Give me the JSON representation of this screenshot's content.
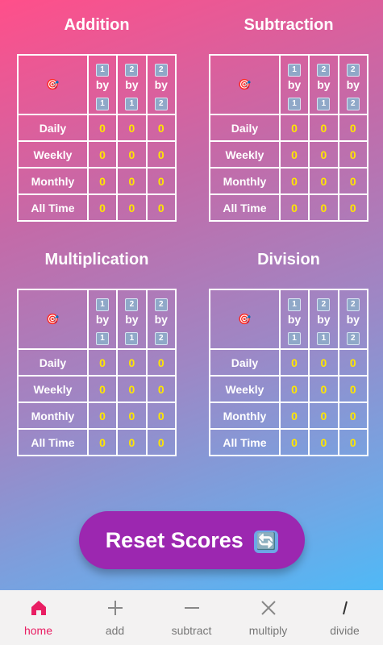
{
  "colors": {
    "value": "#ffe600",
    "accent": "#e91e63",
    "button": "#9c27b0"
  },
  "col_headers": [
    {
      "top": "1",
      "mid": "by",
      "bottom": "1"
    },
    {
      "top": "2",
      "mid": "by",
      "bottom": "1"
    },
    {
      "top": "2",
      "mid": "by",
      "bottom": "2"
    }
  ],
  "target_icon": "🎯",
  "blocks": [
    {
      "title": "Addition",
      "rows": [
        {
          "label": "Daily",
          "values": [
            "0",
            "0",
            "0"
          ]
        },
        {
          "label": "Weekly",
          "values": [
            "0",
            "0",
            "0"
          ]
        },
        {
          "label": "Monthly",
          "values": [
            "0",
            "0",
            "0"
          ]
        },
        {
          "label": "All Time",
          "values": [
            "0",
            "0",
            "0"
          ]
        }
      ]
    },
    {
      "title": "Subtraction",
      "rows": [
        {
          "label": "Daily",
          "values": [
            "0",
            "0",
            "0"
          ]
        },
        {
          "label": "Weekly",
          "values": [
            "0",
            "0",
            "0"
          ]
        },
        {
          "label": "Monthly",
          "values": [
            "0",
            "0",
            "0"
          ]
        },
        {
          "label": "All Time",
          "values": [
            "0",
            "0",
            "0"
          ]
        }
      ]
    },
    {
      "title": "Multiplication",
      "rows": [
        {
          "label": "Daily",
          "values": [
            "0",
            "0",
            "0"
          ]
        },
        {
          "label": "Weekly",
          "values": [
            "0",
            "0",
            "0"
          ]
        },
        {
          "label": "Monthly",
          "values": [
            "0",
            "0",
            "0"
          ]
        },
        {
          "label": "All Time",
          "values": [
            "0",
            "0",
            "0"
          ]
        }
      ]
    },
    {
      "title": "Division",
      "rows": [
        {
          "label": "Daily",
          "values": [
            "0",
            "0",
            "0"
          ]
        },
        {
          "label": "Weekly",
          "values": [
            "0",
            "0",
            "0"
          ]
        },
        {
          "label": "Monthly",
          "values": [
            "0",
            "0",
            "0"
          ]
        },
        {
          "label": "All Time",
          "values": [
            "0",
            "0",
            "0"
          ]
        }
      ]
    }
  ],
  "reset_button": {
    "label": "Reset Scores",
    "emoji": "🔄"
  },
  "nav": [
    {
      "label": "home",
      "icon": "home-icon",
      "active": true
    },
    {
      "label": "add",
      "icon": "plus-icon",
      "active": false
    },
    {
      "label": "subtract",
      "icon": "minus-icon",
      "active": false
    },
    {
      "label": "multiply",
      "icon": "times-icon",
      "active": false
    },
    {
      "label": "divide",
      "icon": "slash-icon",
      "active": false
    }
  ]
}
